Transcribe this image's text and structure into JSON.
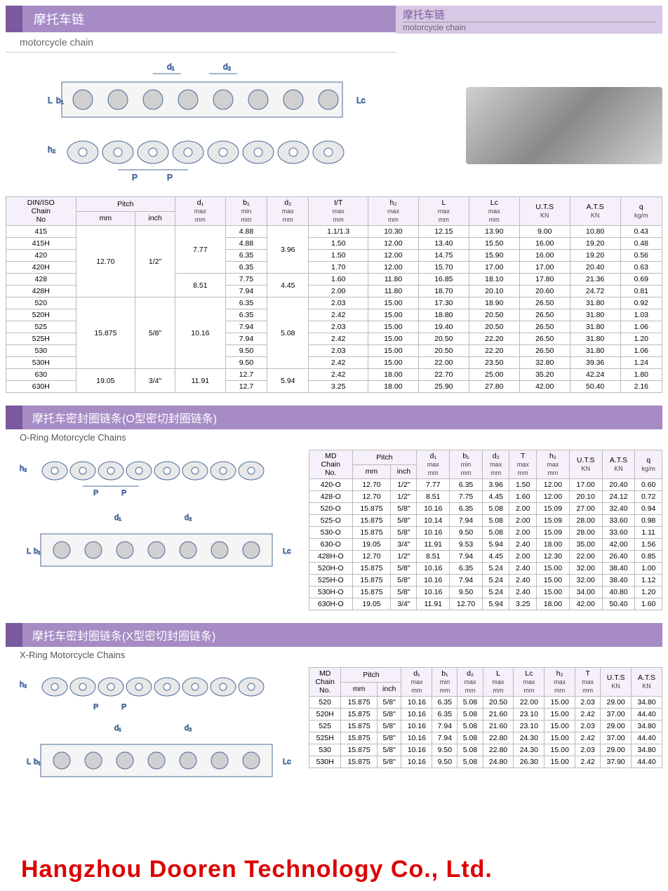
{
  "header": {
    "title_cn": "摩托车链",
    "title_en": "motorcycle chain",
    "right_cn": "摩托车链",
    "right_en": "motorcycle chain"
  },
  "watermark": "Hangzhou Dooren Technology Co., Ltd.",
  "table1": {
    "headers": [
      "DIN/ISO Chain No",
      "Pitch mm",
      "Pitch inch",
      "d₁ max mm",
      "b₁ min mm",
      "d₂ max mm",
      "t/T max mm",
      "h₂ max mm",
      "L max mm",
      "Lc max mm",
      "U.T.S KN",
      "A.T.S KN",
      "q kg/m"
    ],
    "rows": [
      [
        "415",
        "12.70",
        "1/2\"",
        "7.77",
        "4.88",
        "3.96",
        "1.1/1.3",
        "10.30",
        "12.15",
        "13.90",
        "9.00",
        "10.80",
        "0.43"
      ],
      [
        "415H",
        "",
        "",
        "",
        "4.88",
        "",
        "1.50",
        "12.00",
        "13.40",
        "15.50",
        "16.00",
        "19.20",
        "0.48"
      ],
      [
        "420",
        "",
        "",
        "",
        "6.35",
        "",
        "1.50",
        "12.00",
        "14.75",
        "15.90",
        "16.00",
        "19.20",
        "0.56"
      ],
      [
        "420H",
        "",
        "",
        "",
        "6.35",
        "",
        "1.70",
        "12.00",
        "15.70",
        "17.00",
        "17.00",
        "20.40",
        "0.63"
      ],
      [
        "428",
        "",
        "",
        "8.51",
        "7.75",
        "4.45",
        "1.60",
        "11.80",
        "16.85",
        "18.10",
        "17.80",
        "21.36",
        "0.69"
      ],
      [
        "428H",
        "",
        "",
        "",
        "7.94",
        "",
        "2.00",
        "11.80",
        "18.70",
        "20.10",
        "20.60",
        "24.72",
        "0.81"
      ],
      [
        "520",
        "15.875",
        "5/8\"",
        "10.16",
        "6.35",
        "5.08",
        "2.03",
        "15.00",
        "17.30",
        "18.90",
        "26.50",
        "31.80",
        "0.92"
      ],
      [
        "520H",
        "",
        "",
        "",
        "6.35",
        "",
        "2.42",
        "15.00",
        "18.80",
        "20.50",
        "26.50",
        "31.80",
        "1.03"
      ],
      [
        "525",
        "",
        "",
        "",
        "7.94",
        "",
        "2.03",
        "15.00",
        "19.40",
        "20.50",
        "26.50",
        "31.80",
        "1.06"
      ],
      [
        "525H",
        "",
        "",
        "",
        "7.94",
        "",
        "2.42",
        "15.00",
        "20.50",
        "22.20",
        "26.50",
        "31.80",
        "1.20"
      ],
      [
        "530",
        "",
        "",
        "",
        "9.50",
        "",
        "2.03",
        "15.00",
        "20.50",
        "22.20",
        "26.50",
        "31.80",
        "1.06"
      ],
      [
        "530H",
        "",
        "",
        "",
        "9.50",
        "",
        "2.42",
        "15.00",
        "22.00",
        "23.50",
        "32.80",
        "39.36",
        "1.24"
      ],
      [
        "630",
        "19.05",
        "3/4\"",
        "11.91",
        "12.7",
        "5.94",
        "2.42",
        "18.00",
        "22.70",
        "25.00",
        "35.20",
        "42.24",
        "1.80"
      ],
      [
        "630H",
        "",
        "",
        "",
        "12.7",
        "",
        "3.25",
        "18.00",
        "25.90",
        "27.80",
        "42.00",
        "50.40",
        "2.16"
      ]
    ],
    "spans": {
      "pitch_mm": [
        [
          0,
          6,
          "12.70"
        ],
        [
          6,
          6,
          "15.875"
        ],
        [
          12,
          2,
          "19.05"
        ]
      ],
      "pitch_in": [
        [
          0,
          6,
          "1/2\""
        ],
        [
          6,
          6,
          "5/8\""
        ],
        [
          12,
          2,
          "3/4\""
        ]
      ],
      "d1": [
        [
          0,
          4,
          "7.77"
        ],
        [
          4,
          2,
          "8.51"
        ],
        [
          6,
          6,
          "10.16"
        ],
        [
          12,
          2,
          "11.91"
        ]
      ],
      "d2": [
        [
          0,
          4,
          "3.96"
        ],
        [
          4,
          2,
          "4.45"
        ],
        [
          6,
          6,
          "5.08"
        ],
        [
          12,
          2,
          "5.94"
        ]
      ]
    }
  },
  "section2": {
    "title_cn": "摩托车密封圈链条(O型密切封圈链条)",
    "title_en": "O-Ring Motorcycle Chains"
  },
  "table2": {
    "headers": [
      "MD Chain No.",
      "Pitch mm",
      "Pitch inch",
      "d₁ max mm",
      "b₁ min mm",
      "d₂ max mm",
      "T max mm",
      "h₂ max mm",
      "U.T.S KN",
      "A.T.S KN",
      "q kg/m"
    ],
    "rows": [
      [
        "420-O",
        "12.70",
        "1/2\"",
        "7.77",
        "6.35",
        "3.96",
        "1.50",
        "12.00",
        "17.00",
        "20.40",
        "0.60"
      ],
      [
        "428-O",
        "12.70",
        "1/2\"",
        "8.51",
        "7.75",
        "4.45",
        "1.60",
        "12.00",
        "20.10",
        "24.12",
        "0.72"
      ],
      [
        "520-O",
        "15.875",
        "5/8\"",
        "10.16",
        "6.35",
        "5.08",
        "2.00",
        "15.09",
        "27.00",
        "32.40",
        "0.94"
      ],
      [
        "525-O",
        "15.875",
        "5/8\"",
        "10.14",
        "7.94",
        "5.08",
        "2.00",
        "15.09",
        "28.00",
        "33.60",
        "0.98"
      ],
      [
        "530-O",
        "15.875",
        "5/8\"",
        "10.16",
        "9.50",
        "5.08",
        "2.00",
        "15.09",
        "28.00",
        "33.60",
        "1.11"
      ],
      [
        "630-O",
        "19.05",
        "3/4\"",
        "11.91",
        "9.53",
        "5.94",
        "2.40",
        "18.00",
        "35.00",
        "42.00",
        "1.56"
      ],
      [
        "428H-O",
        "12.70",
        "1/2\"",
        "8.51",
        "7.94",
        "4.45",
        "2.00",
        "12.30",
        "22.00",
        "26.40",
        "0.85"
      ],
      [
        "520H-O",
        "15.875",
        "5/8\"",
        "10.16",
        "6.35",
        "5.24",
        "2.40",
        "15.00",
        "32.00",
        "38.40",
        "1.00"
      ],
      [
        "525H-O",
        "15.875",
        "5/8\"",
        "10.16",
        "7.94",
        "5.24",
        "2.40",
        "15.00",
        "32.00",
        "38.40",
        "1.12"
      ],
      [
        "530H-O",
        "15.875",
        "5/8\"",
        "10.16",
        "9.50",
        "5.24",
        "2.40",
        "15.00",
        "34.00",
        "40.80",
        "1.20"
      ],
      [
        "630H-O",
        "19.05",
        "3/4\"",
        "11.91",
        "12.70",
        "5.94",
        "3.25",
        "18.00",
        "42.00",
        "50.40",
        "1.60"
      ]
    ]
  },
  "section3": {
    "title_cn": "摩托车密封圈链条(X型密切封圈链条)",
    "title_en": "X-Ring Motorcycle Chains"
  },
  "table3": {
    "headers": [
      "MD Chain No.",
      "Pitch mm",
      "Pitch inch",
      "d₁ max mm",
      "b₁ min mm",
      "d₂ max mm",
      "L max mm",
      "Lc max mm",
      "h₂ max mm",
      "T max mm",
      "U.T.S KN",
      "A.T.S KN"
    ],
    "rows": [
      [
        "520",
        "15.875",
        "5/8\"",
        "10.16",
        "6.35",
        "5.08",
        "20.50",
        "22.00",
        "15.00",
        "2.03",
        "29.00",
        "34.80"
      ],
      [
        "520H",
        "15.875",
        "5/8\"",
        "10.16",
        "6.35",
        "5.08",
        "21.60",
        "23.10",
        "15.00",
        "2.42",
        "37.00",
        "44.40"
      ],
      [
        "525",
        "15.875",
        "5/8\"",
        "10.16",
        "7.94",
        "5.08",
        "21.60",
        "23.10",
        "15.00",
        "2.03",
        "29.00",
        "34.80"
      ],
      [
        "525H",
        "15.875",
        "5/8\"",
        "10.16",
        "7.94",
        "5.08",
        "22.80",
        "24.30",
        "15.00",
        "2.42",
        "37.00",
        "44.40"
      ],
      [
        "530",
        "15.875",
        "5/8\"",
        "10.16",
        "9.50",
        "5.08",
        "22.80",
        "24.30",
        "15.00",
        "2.03",
        "29.00",
        "34.80"
      ],
      [
        "530H",
        "15.875",
        "5/8\"",
        "10.16",
        "9.50",
        "5.08",
        "24.80",
        "26.30",
        "15.00",
        "2.42",
        "37.90",
        "44.40"
      ]
    ]
  }
}
